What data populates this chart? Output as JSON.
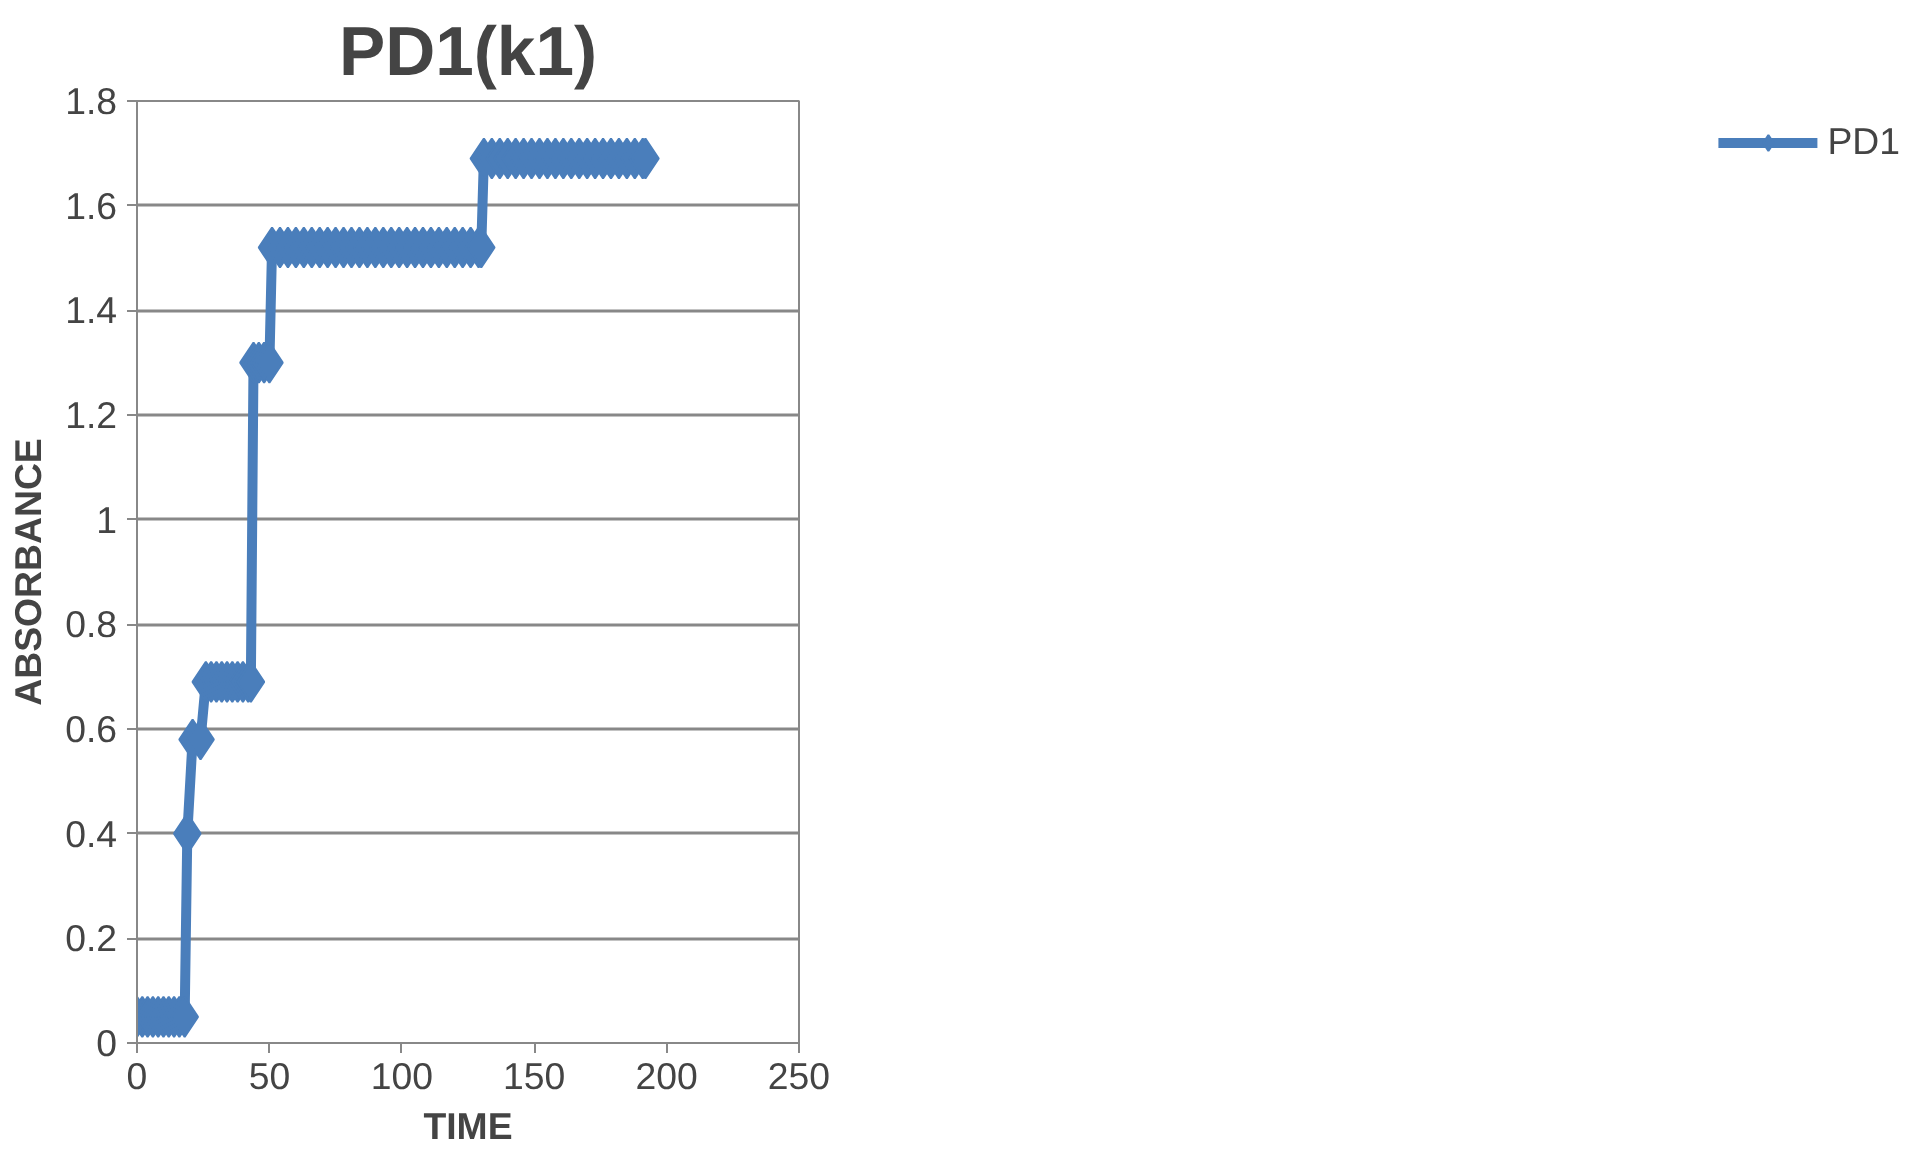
{
  "chart_data": {
    "type": "line",
    "title": "PD1(k1)",
    "xlabel": "TIME",
    "ylabel": "ABSORBANCE",
    "xlim": [
      0,
      250
    ],
    "xticks": [
      0,
      50,
      100,
      150,
      200,
      250
    ],
    "ylim": [
      0,
      1.8
    ],
    "yticks": [
      0,
      0.2,
      0.4,
      0.6,
      0.8,
      1,
      1.2,
      1.4,
      1.6,
      1.8
    ],
    "grid": "y",
    "legend": "right",
    "marker": "diamond",
    "line_style": "solid",
    "series": [
      {
        "name": "PD1",
        "color": "#4a7ebb",
        "x": [
          0,
          2,
          4,
          6,
          8,
          10,
          12,
          14,
          16,
          18,
          19,
          21,
          24,
          26,
          28,
          30,
          32,
          34,
          36,
          38,
          40,
          42,
          43,
          44,
          46,
          48,
          50,
          51,
          54,
          57,
          60,
          63,
          66,
          69,
          72,
          75,
          78,
          81,
          84,
          87,
          90,
          93,
          96,
          99,
          102,
          105,
          108,
          111,
          114,
          117,
          120,
          123,
          126,
          129,
          130,
          131,
          134,
          137,
          140,
          143,
          146,
          149,
          152,
          155,
          158,
          161,
          164,
          167,
          170,
          173,
          176,
          179,
          182,
          185,
          188,
          191,
          192
        ],
        "values": [
          0.05,
          0.05,
          0.05,
          0.05,
          0.05,
          0.05,
          0.05,
          0.05,
          0.05,
          0.05,
          0.4,
          0.58,
          0.58,
          0.69,
          0.69,
          0.69,
          0.69,
          0.69,
          0.69,
          0.69,
          0.69,
          0.69,
          0.69,
          1.3,
          1.3,
          1.3,
          1.3,
          1.52,
          1.52,
          1.52,
          1.52,
          1.52,
          1.52,
          1.52,
          1.52,
          1.52,
          1.52,
          1.52,
          1.52,
          1.52,
          1.52,
          1.52,
          1.52,
          1.52,
          1.52,
          1.52,
          1.52,
          1.52,
          1.52,
          1.52,
          1.52,
          1.52,
          1.52,
          1.52,
          1.52,
          1.69,
          1.69,
          1.69,
          1.69,
          1.69,
          1.69,
          1.69,
          1.69,
          1.69,
          1.69,
          1.69,
          1.69,
          1.69,
          1.69,
          1.69,
          1.69,
          1.69,
          1.69,
          1.69,
          1.69,
          1.69,
          1.69
        ]
      }
    ]
  }
}
